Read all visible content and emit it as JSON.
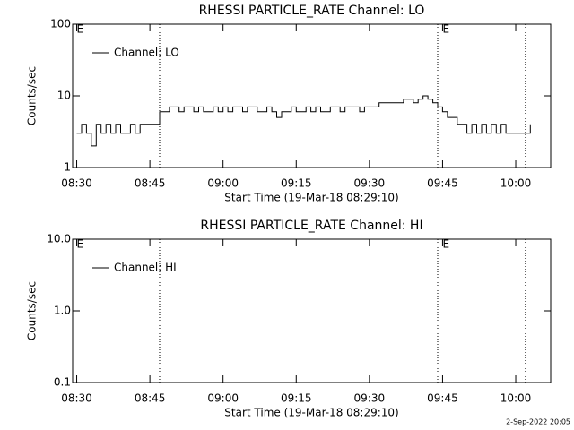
{
  "footer": "2-Sep-2022 20:05",
  "chart_data": [
    {
      "type": "line",
      "title": "RHESSI PARTICLE_RATE Channel: LO",
      "xlabel": "Start Time (19-Mar-18 08:29:10)",
      "ylabel": "Counts/sec",
      "log_y": true,
      "legend": "upper left",
      "xlim": [
        "08:29:10",
        "10:07:10"
      ],
      "xticks": [
        "08:30",
        "08:45",
        "09:00",
        "09:15",
        "09:30",
        "09:45",
        "10:00"
      ],
      "ylim": [
        1,
        100
      ],
      "yticks": [
        1,
        10,
        100
      ],
      "vlines": [
        "08:47",
        "09:44",
        "10:02"
      ],
      "annotations": [
        {
          "text": "E",
          "x": "08:30"
        },
        {
          "text": "E",
          "x": "09:45"
        }
      ],
      "x": [
        "08:30",
        "08:31",
        "08:32",
        "08:33",
        "08:34",
        "08:35",
        "08:36",
        "08:37",
        "08:38",
        "08:39",
        "08:40",
        "08:41",
        "08:42",
        "08:43",
        "08:44",
        "08:45",
        "08:46",
        "08:47",
        "08:48",
        "08:49",
        "08:50",
        "08:51",
        "08:52",
        "08:53",
        "08:54",
        "08:55",
        "08:56",
        "08:57",
        "08:58",
        "08:59",
        "09:00",
        "09:01",
        "09:02",
        "09:03",
        "09:04",
        "09:05",
        "09:06",
        "09:07",
        "09:08",
        "09:09",
        "09:10",
        "09:11",
        "09:12",
        "09:13",
        "09:14",
        "09:15",
        "09:16",
        "09:17",
        "09:18",
        "09:19",
        "09:20",
        "09:21",
        "09:22",
        "09:23",
        "09:24",
        "09:25",
        "09:26",
        "09:27",
        "09:28",
        "09:29",
        "09:30",
        "09:31",
        "09:32",
        "09:33",
        "09:34",
        "09:35",
        "09:36",
        "09:37",
        "09:38",
        "09:39",
        "09:40",
        "09:41",
        "09:42",
        "09:43",
        "09:44",
        "09:45",
        "09:46",
        "09:47",
        "09:48",
        "09:49",
        "09:50",
        "09:51",
        "09:52",
        "09:53",
        "09:54",
        "09:55",
        "09:56",
        "09:57",
        "09:58",
        "09:59",
        "10:00",
        "10:01",
        "10:02",
        "10:03"
      ],
      "series": [
        {
          "name": "Channel: LO",
          "color": "#000000",
          "values": [
            3,
            4,
            3,
            2,
            4,
            3,
            4,
            3,
            4,
            3,
            3,
            4,
            3,
            4,
            4,
            4,
            4,
            6,
            6,
            7,
            7,
            6,
            7,
            7,
            6,
            7,
            6,
            6,
            7,
            6,
            7,
            6,
            7,
            7,
            6,
            7,
            7,
            6,
            6,
            7,
            6,
            5,
            6,
            6,
            7,
            6,
            6,
            7,
            6,
            7,
            6,
            6,
            7,
            7,
            6,
            7,
            7,
            7,
            6,
            7,
            7,
            7,
            8,
            8,
            8,
            8,
            8,
            9,
            9,
            8,
            9,
            10,
            9,
            8,
            7,
            6,
            5,
            5,
            4,
            4,
            3,
            4,
            3,
            4,
            3,
            4,
            3,
            4,
            3,
            3,
            3,
            3,
            3,
            4
          ]
        }
      ]
    },
    {
      "type": "line",
      "title": "RHESSI PARTICLE_RATE Channel: HI",
      "xlabel": "Start Time (19-Mar-18 08:29:10)",
      "ylabel": "Counts/sec",
      "log_y": true,
      "legend": "upper left",
      "xlim": [
        "08:29:10",
        "10:07:10"
      ],
      "xticks": [
        "08:30",
        "08:45",
        "09:00",
        "09:15",
        "09:30",
        "09:45",
        "10:00"
      ],
      "ylim": [
        0.1,
        10
      ],
      "yticks": [
        0.1,
        {
          "value": 1,
          "label": "1.0"
        },
        {
          "value": 10,
          "label": "10.0"
        }
      ],
      "vlines": [
        "08:47",
        "09:44",
        "10:02"
      ],
      "annotations": [
        {
          "text": "E",
          "x": "08:30"
        },
        {
          "text": "E",
          "x": "09:45"
        }
      ],
      "x": [],
      "series": [
        {
          "name": "Channel: HI",
          "color": "#000000",
          "values": []
        }
      ]
    }
  ]
}
